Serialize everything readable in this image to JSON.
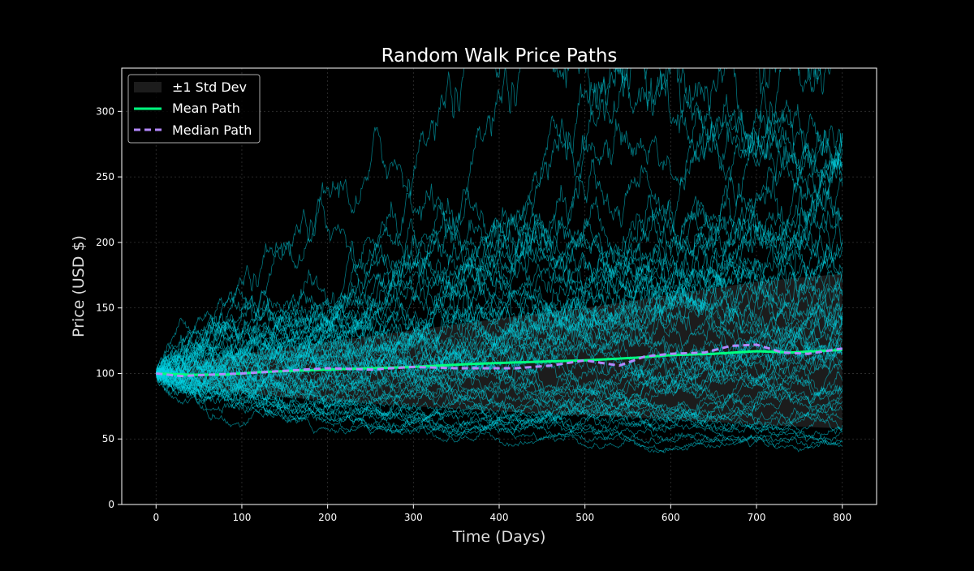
{
  "chart_data": {
    "type": "line",
    "title": "Random Walk Price Paths",
    "xlabel": "Time (Days)",
    "ylabel": "Price (USD $)",
    "xlim": [
      -40,
      840
    ],
    "ylim": [
      0,
      333
    ],
    "xticks": [
      0,
      100,
      200,
      300,
      400,
      500,
      600,
      700,
      800
    ],
    "yticks": [
      0,
      50,
      100,
      150,
      200,
      250,
      300
    ],
    "grid": true,
    "legend_placement": "top-left",
    "colors": {
      "background": "#000000",
      "paths": "#00d5e6",
      "mean": "#00ff7f",
      "median": "#b388ff",
      "std_band": "#1c1c1c"
    },
    "simulated_paths": {
      "count": 60,
      "start_price": 100,
      "days": 800
    },
    "std_band": {
      "label": "±1 Std Dev",
      "x": [
        0,
        50,
        100,
        200,
        300,
        400,
        500,
        600,
        700,
        800
      ],
      "upper": [
        100,
        110,
        115,
        124,
        133,
        142,
        150,
        160,
        170,
        176
      ],
      "lower": [
        100,
        89,
        85,
        79,
        75,
        71,
        68,
        65,
        61,
        58
      ]
    },
    "series": [
      {
        "name": "Mean Path",
        "x": [
          0,
          40,
          80,
          120,
          200,
          300,
          360,
          400,
          500,
          560,
          600,
          650,
          700,
          740,
          800
        ],
        "values": [
          100,
          99,
          99,
          101,
          103,
          105,
          107,
          108,
          110,
          112,
          114,
          115,
          117,
          116,
          118
        ]
      },
      {
        "name": "Median Path",
        "x": [
          0,
          30,
          60,
          100,
          150,
          200,
          250,
          300,
          350,
          390,
          420,
          460,
          500,
          540,
          570,
          600,
          640,
          670,
          700,
          730,
          760,
          800
        ],
        "values": [
          100,
          98,
          99,
          100,
          102,
          104,
          103,
          105,
          104,
          104,
          104,
          106,
          110,
          106,
          113,
          115,
          116,
          121,
          122,
          116,
          115,
          119
        ]
      }
    ]
  }
}
